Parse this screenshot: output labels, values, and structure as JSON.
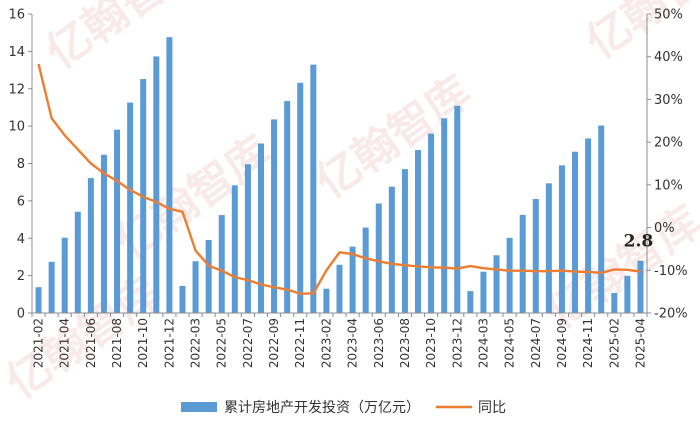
{
  "chart_data": {
    "type": "bar+line",
    "title": "",
    "categories": [
      "2021-02",
      "2021-03",
      "2021-04",
      "2021-05",
      "2021-06",
      "2021-07",
      "2021-08",
      "2021-09",
      "2021-10",
      "2021-11",
      "2021-12",
      "2022-02",
      "2022-03",
      "2022-04",
      "2022-05",
      "2022-06",
      "2022-07",
      "2022-08",
      "2022-09",
      "2022-10",
      "2022-11",
      "2022-12",
      "2023-02",
      "2023-03",
      "2023-04",
      "2023-05",
      "2023-06",
      "2023-07",
      "2023-08",
      "2023-09",
      "2023-10",
      "2023-11",
      "2023-12",
      "2024-02",
      "2024-03",
      "2024-04",
      "2024-05",
      "2024-06",
      "2024-07",
      "2024-08",
      "2024-09",
      "2024-10",
      "2024-11",
      "2024-12",
      "2025-02",
      "2025-03",
      "2025-04"
    ],
    "x_tick_labels": [
      "2021-02",
      "2021-04",
      "2021-06",
      "2021-08",
      "2021-10",
      "2021-12",
      "2022-03",
      "2022-05",
      "2022-07",
      "2022-09",
      "2022-11",
      "2023-02",
      "2023-04",
      "2023-06",
      "2023-08",
      "2023-10",
      "2023-12",
      "2024-03",
      "2024-05",
      "2024-07",
      "2024-09",
      "2024-11",
      "2025-02",
      "2025-04"
    ],
    "series": [
      {
        "name": "累计房地产开发投资（万亿元）",
        "type": "bar",
        "axis": "left",
        "color": "#5b9bd5",
        "values": [
          1.38,
          2.74,
          4.03,
          5.42,
          7.22,
          8.47,
          9.81,
          11.26,
          12.52,
          13.73,
          14.76,
          1.45,
          2.77,
          3.91,
          5.24,
          6.83,
          7.96,
          9.07,
          10.36,
          11.34,
          12.32,
          13.29,
          1.3,
          2.58,
          3.55,
          4.57,
          5.86,
          6.76,
          7.7,
          8.72,
          9.6,
          10.42,
          11.09,
          1.17,
          2.21,
          3.09,
          4.02,
          5.25,
          6.1,
          6.94,
          7.9,
          8.63,
          9.34,
          10.03,
          1.07,
          1.99,
          2.8
        ]
      },
      {
        "name": "同比",
        "type": "line",
        "axis": "right",
        "color": "#ed7d31",
        "values": [
          38.3,
          25.6,
          21.6,
          18.3,
          15.0,
          12.7,
          10.9,
          8.8,
          7.2,
          6.0,
          4.4,
          3.7,
          -5.4,
          -8.9,
          -10.1,
          -11.6,
          -12.3,
          -13.3,
          -14.0,
          -14.5,
          -15.5,
          -15.4,
          -10.0,
          -5.8,
          -6.2,
          -7.2,
          -7.9,
          -8.5,
          -8.8,
          -9.1,
          -9.3,
          -9.4,
          -9.6,
          -9.0,
          -9.5,
          -9.8,
          -10.1,
          -10.1,
          -10.2,
          -10.2,
          -10.1,
          -10.3,
          -10.4,
          -10.6,
          -9.8,
          -9.9,
          -10.3
        ]
      }
    ],
    "y_left": {
      "min": 0,
      "max": 16,
      "ticks": [
        "0",
        "2",
        "4",
        "6",
        "8",
        "10",
        "12",
        "14",
        "16"
      ]
    },
    "y_right": {
      "min": -20,
      "max": 50,
      "ticks": [
        "-20%",
        "-10%",
        "0%",
        "10%",
        "20%",
        "30%",
        "40%",
        "50%"
      ]
    },
    "annotation": {
      "text": "2.8",
      "category": "2025-04"
    },
    "legend": {
      "position": "bottom",
      "items": [
        "累计房地产开发投资（万亿元）",
        "同比"
      ]
    },
    "grid": false
  },
  "watermark": "亿翰智库"
}
